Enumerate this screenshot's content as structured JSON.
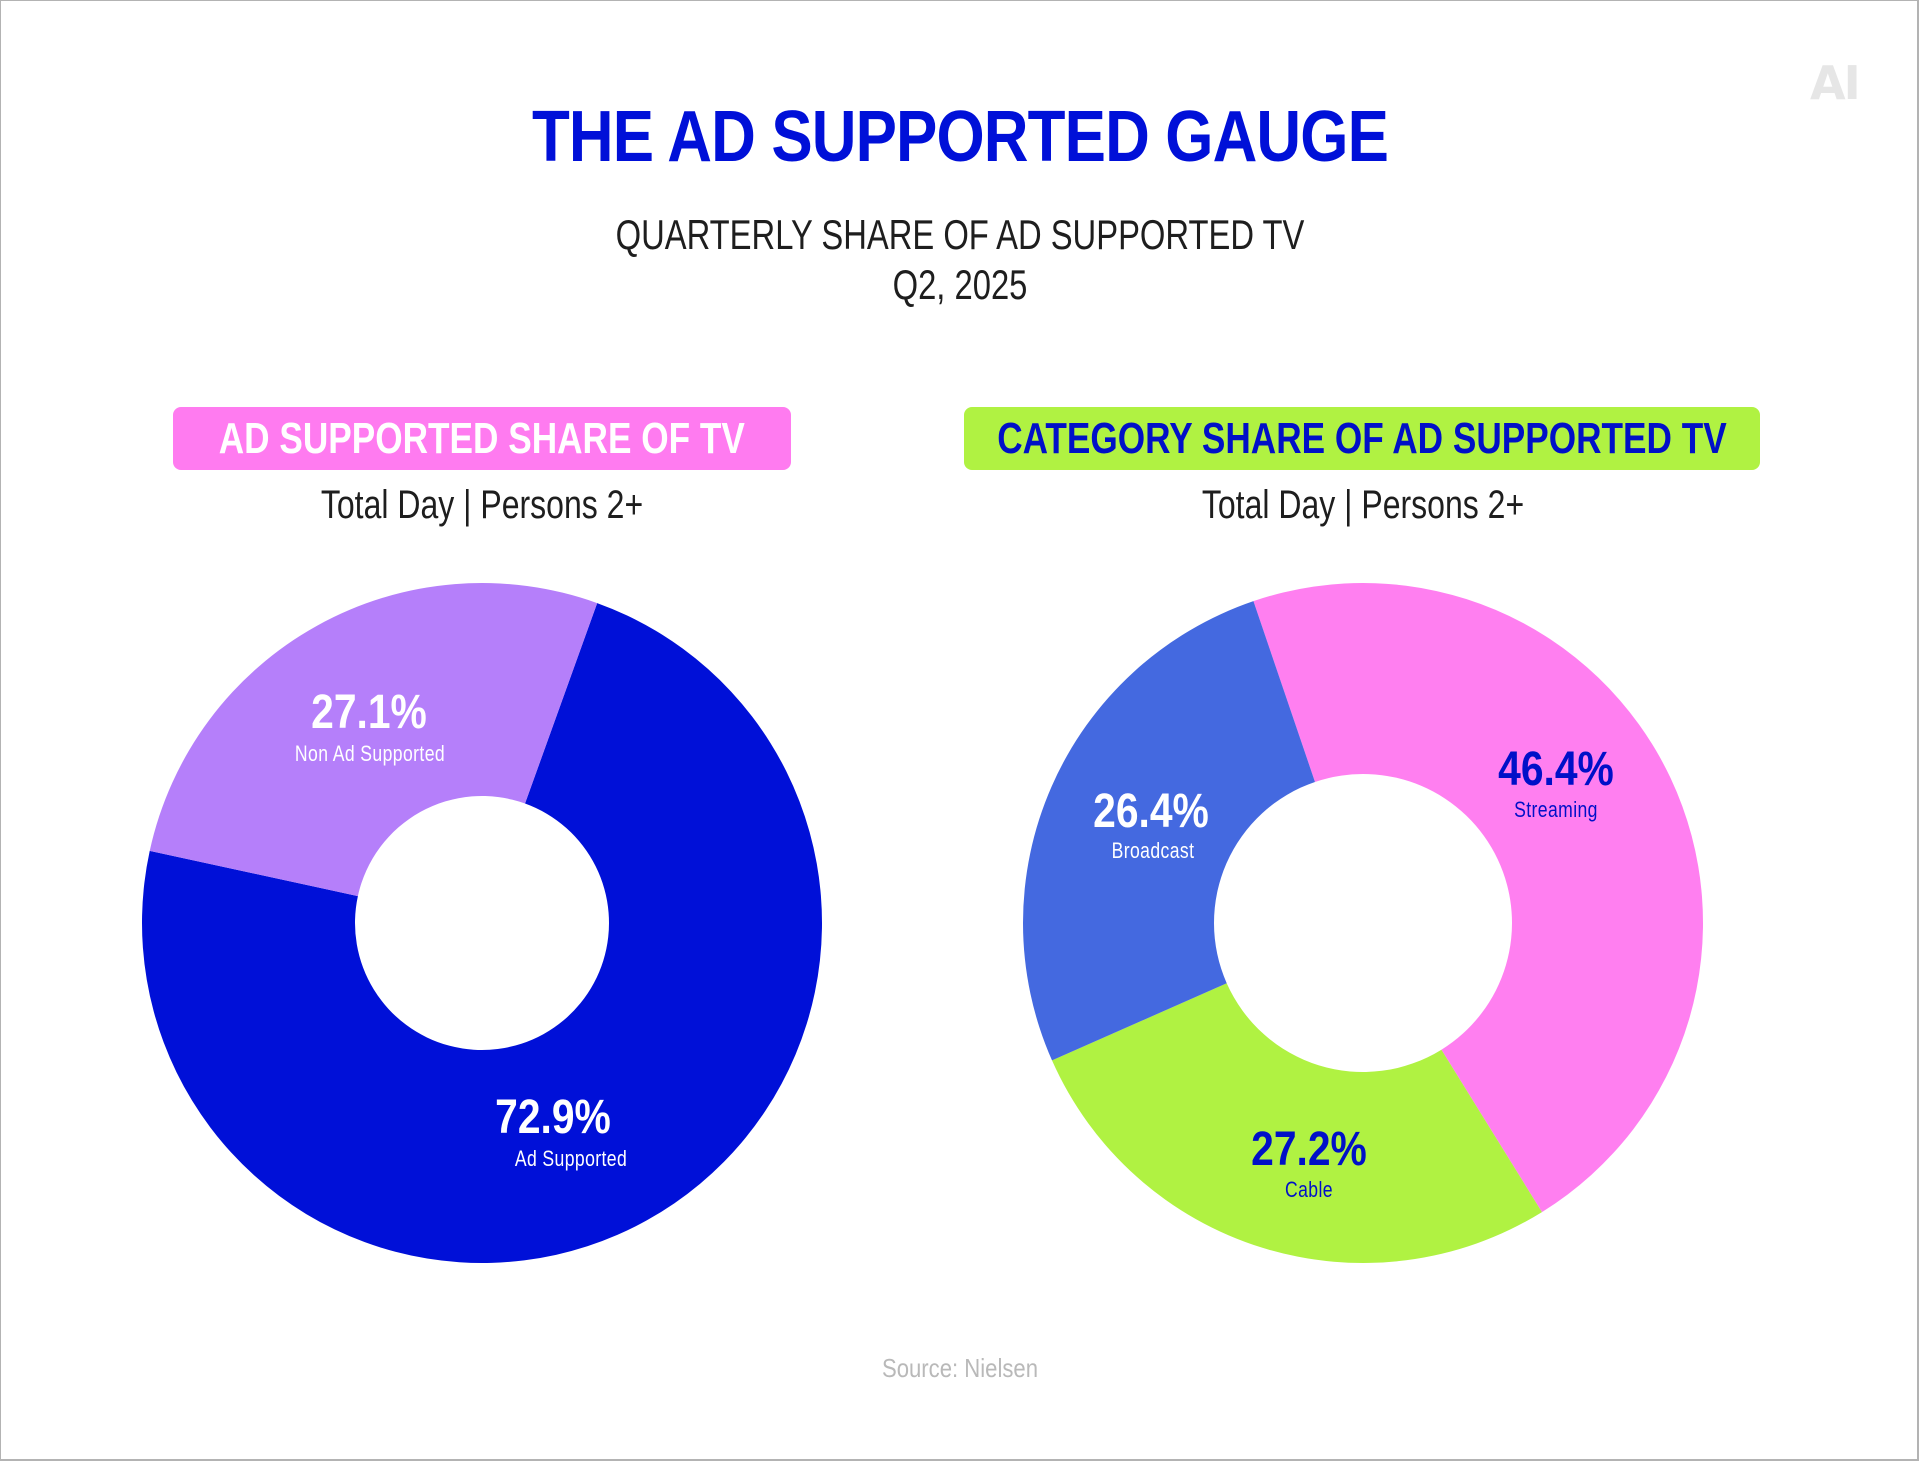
{
  "brand": {
    "logo_text": "AI"
  },
  "header": {
    "title": "THE AD SUPPORTED GAUGE",
    "subtitle_line1": "QUARTERLY SHARE OF AD SUPPORTED TV",
    "subtitle_line2": "Q2, 2025"
  },
  "panels": [
    {
      "heading": "AD SUPPORTED SHARE OF TV",
      "heading_bg": "#ff7bf0",
      "heading_color": "#ffffff",
      "caption": "Total Day | Persons 2+"
    },
    {
      "heading": "CATEGORY SHARE OF AD SUPPORTED TV",
      "heading_bg": "#b0f242",
      "heading_color": "#0010c8",
      "caption": "Total Day | Persons 2+"
    }
  ],
  "source": "Source: Nielsen",
  "chart_data": [
    {
      "type": "pie",
      "subtype": "donut",
      "title": "AD SUPPORTED SHARE OF TV",
      "subtitle": "Total Day | Persons 2+",
      "categories": [
        "Ad Supported",
        "Non Ad Supported"
      ],
      "values": [
        72.9,
        27.1
      ],
      "labels": [
        "72.9%",
        "27.1%"
      ],
      "colors": [
        "#0010d8",
        "#b57ffa"
      ],
      "label_colors": [
        "#ffffff",
        "#ffffff"
      ],
      "unit": "%"
    },
    {
      "type": "pie",
      "subtype": "donut",
      "title": "CATEGORY SHARE OF AD SUPPORTED TV",
      "subtitle": "Total Day | Persons 2+",
      "categories": [
        "Streaming",
        "Cable",
        "Broadcast"
      ],
      "values": [
        46.4,
        27.2,
        26.4
      ],
      "labels": [
        "46.4%",
        "27.2%",
        "26.4%"
      ],
      "colors": [
        "#ff7ff0",
        "#b0f242",
        "#4469e0"
      ],
      "label_colors": [
        "#0010c8",
        "#0010c8",
        "#ffffff"
      ],
      "unit": "%"
    }
  ]
}
